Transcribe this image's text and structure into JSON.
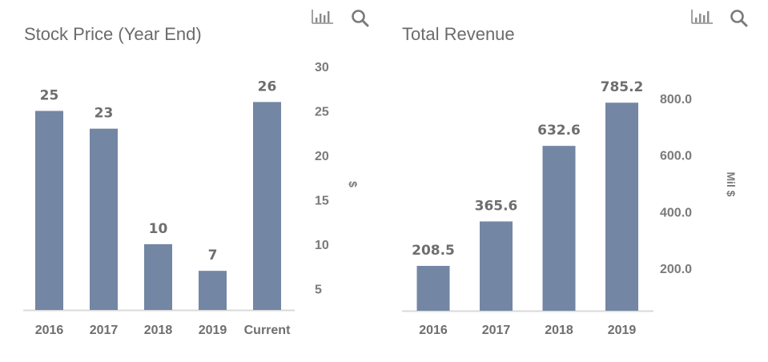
{
  "colors": {
    "bar": "#7386a3",
    "axis_line": "#d9d9d9",
    "title": "#6b6b6b",
    "text": "#6e6e6e"
  },
  "toolbar": {
    "chart_type_icon": "bar-chart-icon",
    "search_icon": "magnifier-icon"
  },
  "chart_data": [
    {
      "type": "bar",
      "title": "Stock Price (Year End)",
      "categories": [
        "2016",
        "2017",
        "2018",
        "2019",
        "Current"
      ],
      "values": [
        25,
        23,
        10,
        7,
        26
      ],
      "data_labels": [
        "25",
        "23",
        "10",
        "7",
        "26"
      ],
      "xlabel": "",
      "ylabel": "$",
      "y_axis_position": "right",
      "yticks": [
        5,
        10,
        15,
        20,
        25,
        30
      ],
      "ytick_labels": [
        "5",
        "10",
        "15",
        "20",
        "25",
        "30"
      ],
      "ylim": [
        2.6,
        30
      ],
      "grid": false,
      "legend": "none"
    },
    {
      "type": "bar",
      "title": "Total Revenue",
      "categories": [
        "2016",
        "2017",
        "2018",
        "2019"
      ],
      "values": [
        208.5,
        365.6,
        632.6,
        785.2
      ],
      "data_labels": [
        "208.5",
        "365.6",
        "632.6",
        "785.2"
      ],
      "xlabel": "",
      "ylabel": "Mil $",
      "y_axis_position": "right",
      "yticks": [
        200,
        400,
        600,
        800
      ],
      "ytick_labels": [
        "200.0",
        "400.0",
        "600.0",
        "800.0"
      ],
      "ylim": [
        50,
        800
      ],
      "grid": false,
      "legend": "none"
    }
  ]
}
